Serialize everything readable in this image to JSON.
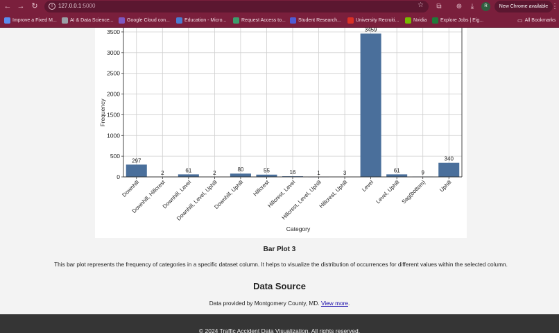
{
  "browser": {
    "url_host": "127.0.0.1",
    "url_port": ":5000",
    "update_label": "New Chrome available",
    "profile_initial": "R",
    "bookmarks": [
      {
        "label": "Improve a Fixed M...",
        "color": "#5b8def"
      },
      {
        "label": "AI & Data Science...",
        "color": "#9aa0a6"
      },
      {
        "label": "Google Cloud con...",
        "color": "#7e57c2"
      },
      {
        "label": "Education - Micro...",
        "color": "#4a7bd0"
      },
      {
        "label": "Request Access to...",
        "color": "#3c9d6c"
      },
      {
        "label": "Student Research...",
        "color": "#4f5bd5"
      },
      {
        "label": "University Recruiti...",
        "color": "#d93025"
      },
      {
        "label": "Nvidia",
        "color": "#76b900"
      },
      {
        "label": "Explore Jobs | Eig...",
        "color": "#1f7a3a"
      }
    ],
    "all_bookmarks_label": "All Bookmarks"
  },
  "chart_data": {
    "type": "bar",
    "categories": [
      "Downhill",
      "Downhill, Hillcrest",
      "Downhill, Level",
      "Downhill, Level, Uphill",
      "Downhill, Uphill",
      "Hillcrest",
      "Hillcrest, Level",
      "Hillcrest, Level, Uphill",
      "Hillcrest, Uphill",
      "Level",
      "Level, Uphill",
      "Sag(bottom)",
      "Uphill"
    ],
    "values": [
      297,
      2,
      61,
      2,
      80,
      55,
      16,
      1,
      3,
      3459,
      61,
      9,
      340
    ],
    "xlabel": "Category",
    "ylabel": "Frequency",
    "ylim": [
      0,
      3600
    ],
    "yticks": [
      0,
      500,
      1000,
      1500,
      2000,
      2500,
      3000,
      3500
    ],
    "grid": true,
    "bar_color": "#4a6f9b"
  },
  "content": {
    "plot_title": "Bar Plot 3",
    "plot_description": "This bar plot represents the frequency of categories in a specific dataset column. It helps to visualize the distribution of occurrences for different values within the selected column.",
    "data_source_title": "Data Source",
    "data_source_text": "Data provided by Montgomery County, MD. ",
    "data_source_link": "View more",
    "data_source_suffix": "."
  },
  "footer": {
    "text": "© 2024 Traffic Accident Data Visualization. All rights reserved."
  }
}
